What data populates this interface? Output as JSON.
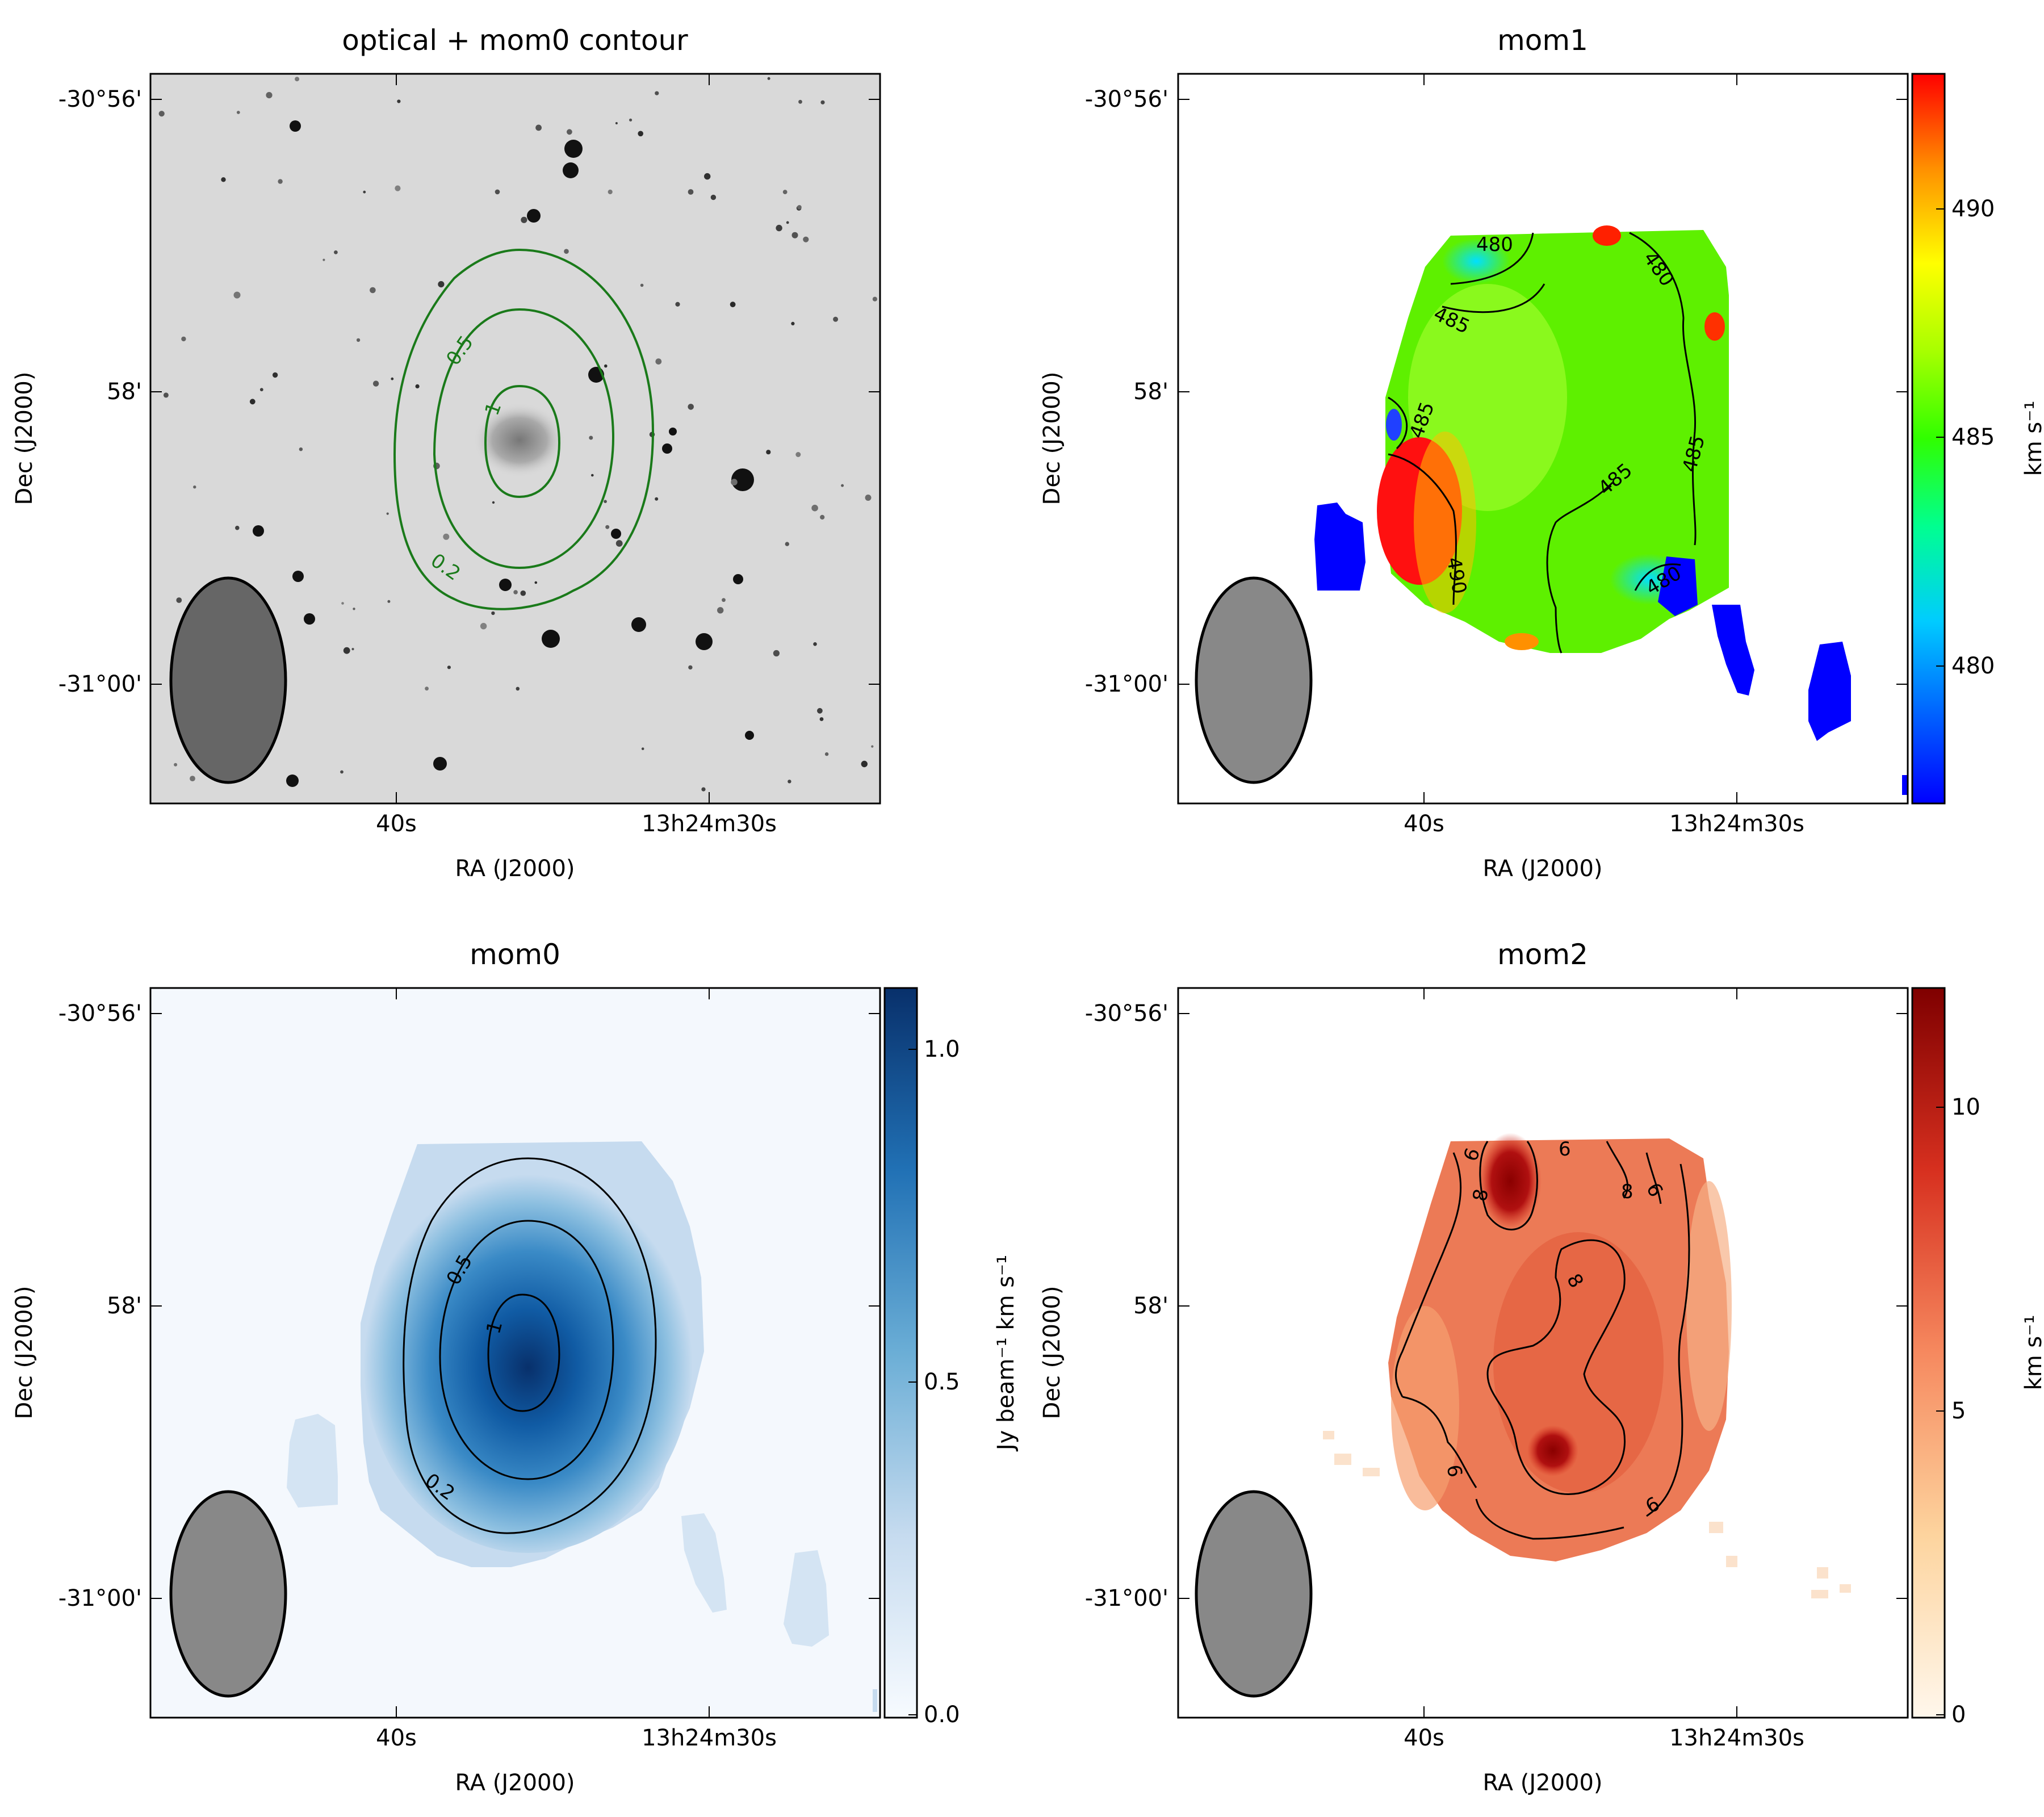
{
  "chart_data": [
    {
      "type": "heatmap",
      "title": "optical + mom0 contour",
      "xlabel": "RA (J2000)",
      "ylabel": "Dec (J2000)",
      "x_ticks": [
        "40s",
        "13h24m30s"
      ],
      "y_ticks": [
        "-30°56'",
        "58'",
        "-31°00'"
      ],
      "image": "optical-greyscale",
      "contour_color": "#1a7a1a",
      "contours": [
        {
          "level": "0.2"
        },
        {
          "level": "0.5"
        },
        {
          "level": "1"
        }
      ],
      "beam_color": "#666666"
    },
    {
      "type": "heatmap",
      "title": "mom1",
      "xlabel": "RA (J2000)",
      "ylabel": "Dec (J2000)",
      "x_ticks": [
        "40s",
        "13h24m30s"
      ],
      "y_ticks": [
        "-30°56'",
        "58'",
        "-31°00'"
      ],
      "colorbar": {
        "label": "km s⁻¹",
        "ticks": [
          "480",
          "485",
          "490"
        ],
        "range": [
          477,
          493
        ],
        "colormap": "jet"
      },
      "contours": [
        {
          "level": "480"
        },
        {
          "level": "480"
        },
        {
          "level": "485"
        },
        {
          "level": "485"
        },
        {
          "level": "485"
        },
        {
          "level": "485"
        },
        {
          "level": "490"
        },
        {
          "level": "480"
        }
      ],
      "beam_color": "#888888"
    },
    {
      "type": "heatmap",
      "title": "mom0",
      "xlabel": "RA (J2000)",
      "ylabel": "Dec (J2000)",
      "x_ticks": [
        "40s",
        "13h24m30s"
      ],
      "y_ticks": [
        "-30°56'",
        "58'",
        "-31°00'"
      ],
      "colorbar": {
        "label": "Jy beam⁻¹ km s⁻¹",
        "ticks": [
          "0.0",
          "0.5",
          "1.0"
        ],
        "range": [
          0,
          1.15
        ],
        "colormap": "Blues"
      },
      "contours": [
        {
          "level": "0.2"
        },
        {
          "level": "0.5"
        },
        {
          "level": "1"
        }
      ],
      "beam_color": "#888888"
    },
    {
      "type": "heatmap",
      "title": "mom2",
      "xlabel": "RA (J2000)",
      "ylabel": "Dec (J2000)",
      "x_ticks": [
        "40s",
        "13h24m30s"
      ],
      "y_ticks": [
        "-30°56'",
        "58'",
        "-31°00'"
      ],
      "colorbar": {
        "label": "km s⁻¹",
        "ticks": [
          "0",
          "5",
          "10"
        ],
        "range": [
          0,
          12
        ],
        "colormap": "OrRd"
      },
      "contours": [
        {
          "level": "6"
        },
        {
          "level": "6"
        },
        {
          "level": "8"
        },
        {
          "level": "8"
        },
        {
          "level": "8"
        },
        {
          "level": "6"
        },
        {
          "level": "6"
        },
        {
          "level": "6"
        }
      ],
      "beam_color": "#888888"
    }
  ]
}
